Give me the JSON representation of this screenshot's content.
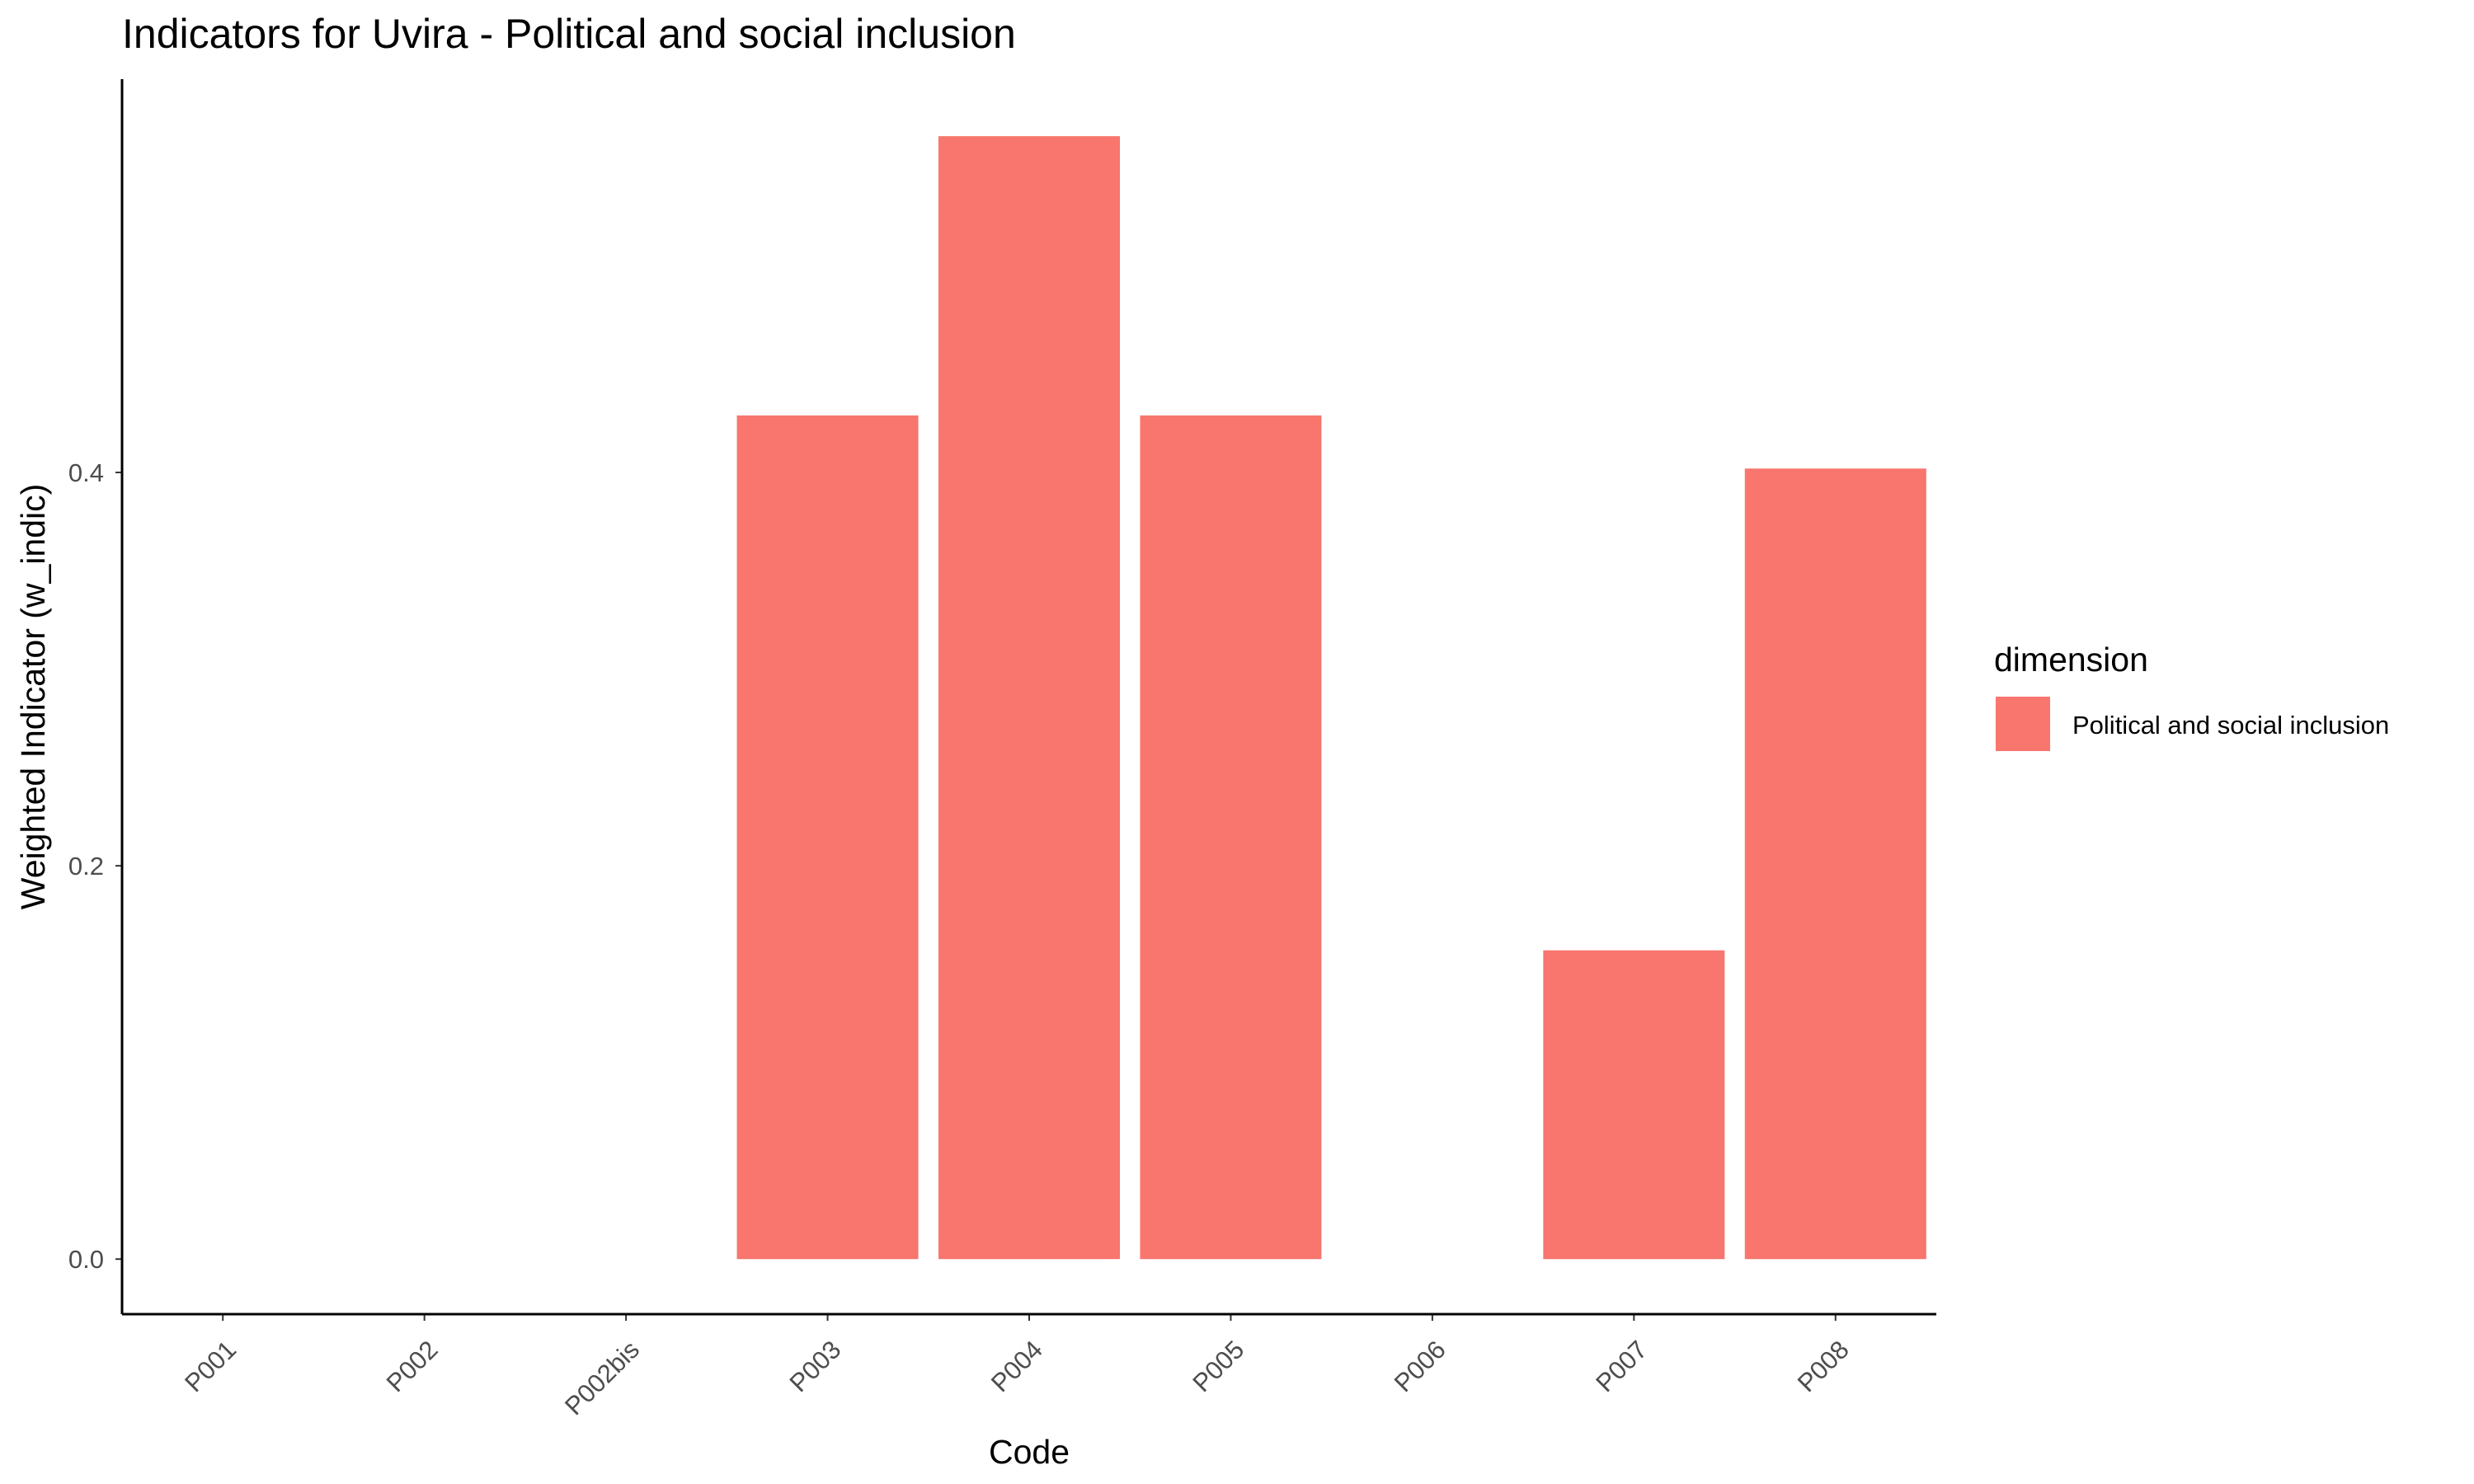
{
  "chart_data": {
    "type": "bar",
    "title": "Indicators for Uvira - Political and social inclusion",
    "xlabel": "Code",
    "ylabel": "Weighted Indicator (w_indic)",
    "categories": [
      "P001",
      "P002",
      "P002bis",
      "P003",
      "P004",
      "P005",
      "P006",
      "P007",
      "P008"
    ],
    "series": [
      {
        "name": "Political and social inclusion",
        "values": [
          0,
          0,
          0,
          0.429,
          0.571,
          0.429,
          0,
          0.157,
          0.402
        ],
        "color": "#F8766D"
      }
    ],
    "ylim": [
      -0.028,
      0.6
    ],
    "yticks": [
      0.0,
      0.2,
      0.4
    ],
    "ytick_labels": [
      "0.0",
      "0.2",
      "0.4"
    ],
    "grid": false,
    "legend": {
      "title": "dimension",
      "position": "right"
    }
  }
}
